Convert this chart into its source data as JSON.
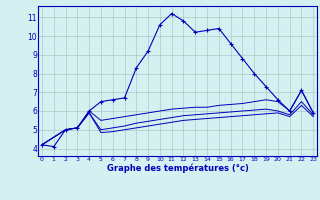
{
  "title": "Graphe des températures (°c)",
  "background_color": "#d4f0f0",
  "grid_color": "#b0c8c8",
  "line_color": "#0000bb",
  "x_labels": [
    "0",
    "1",
    "2",
    "3",
    "4",
    "5",
    "6",
    "7",
    "8",
    "9",
    "10",
    "11",
    "12",
    "13",
    "14",
    "15",
    "16",
    "17",
    "18",
    "19",
    "20",
    "21",
    "22",
    "23"
  ],
  "y_ticks": [
    4,
    5,
    6,
    7,
    8,
    9,
    10,
    11
  ],
  "ylim": [
    3.6,
    11.6
  ],
  "xlim": [
    -0.3,
    23.3
  ],
  "series1_x": [
    0,
    1,
    2,
    3,
    4,
    5,
    6,
    7,
    8,
    9,
    10,
    11,
    12,
    13,
    14,
    15,
    16,
    17,
    18,
    19,
    20,
    21,
    22,
    23
  ],
  "series1_y": [
    4.2,
    4.1,
    5.0,
    5.1,
    6.0,
    6.5,
    6.6,
    6.7,
    8.3,
    9.2,
    10.6,
    11.2,
    10.8,
    10.2,
    10.3,
    10.4,
    9.6,
    8.8,
    8.0,
    7.3,
    6.6,
    6.0,
    7.1,
    5.9
  ],
  "series2_x": [
    0,
    2,
    3,
    4,
    5,
    6,
    7,
    8,
    9,
    10,
    11,
    12,
    13,
    14,
    15,
    16,
    17,
    18,
    19,
    20,
    21,
    22,
    23
  ],
  "series2_y": [
    4.2,
    5.0,
    5.1,
    6.0,
    5.5,
    5.6,
    5.7,
    5.8,
    5.9,
    6.0,
    6.1,
    6.15,
    6.2,
    6.2,
    6.3,
    6.35,
    6.4,
    6.5,
    6.6,
    6.5,
    6.0,
    7.1,
    5.9
  ],
  "series3_x": [
    0,
    2,
    3,
    4,
    5,
    6,
    7,
    8,
    9,
    10,
    11,
    12,
    13,
    14,
    15,
    16,
    17,
    18,
    19,
    20,
    21,
    22,
    23
  ],
  "series3_y": [
    4.2,
    5.0,
    5.1,
    5.9,
    5.0,
    5.1,
    5.2,
    5.35,
    5.45,
    5.55,
    5.65,
    5.75,
    5.8,
    5.85,
    5.9,
    5.95,
    6.0,
    6.05,
    6.1,
    6.0,
    5.8,
    6.5,
    5.8
  ],
  "series4_x": [
    0,
    2,
    3,
    4,
    5,
    6,
    7,
    8,
    9,
    10,
    11,
    12,
    13,
    14,
    15,
    16,
    17,
    18,
    19,
    20,
    21,
    22,
    23
  ],
  "series4_y": [
    4.2,
    5.0,
    5.1,
    5.9,
    4.85,
    4.9,
    5.0,
    5.1,
    5.2,
    5.3,
    5.4,
    5.5,
    5.55,
    5.6,
    5.65,
    5.7,
    5.75,
    5.8,
    5.85,
    5.9,
    5.7,
    6.3,
    5.7
  ]
}
